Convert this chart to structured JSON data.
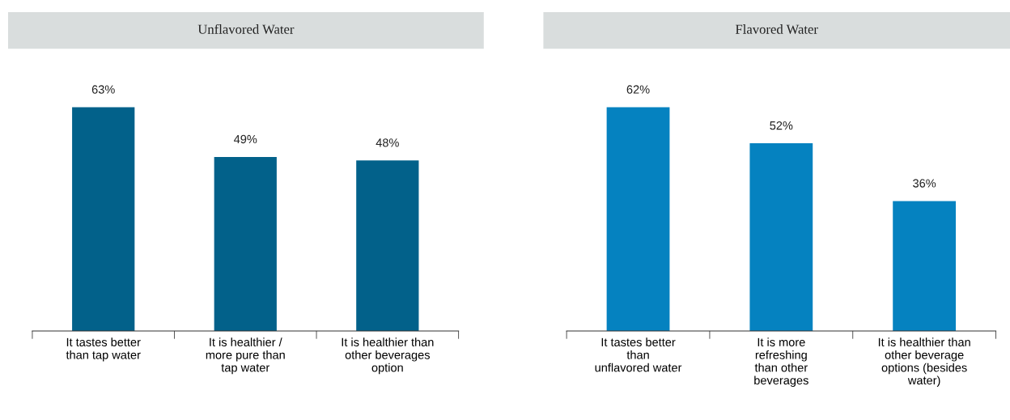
{
  "chart_data": [
    {
      "type": "bar",
      "title": "Unflavored Water",
      "categories": [
        "It tastes better\nthan tap water",
        "It is healthier /\nmore pure than\ntap water",
        "It is healthier than\nother beverages\noption"
      ],
      "values": [
        63,
        49,
        48
      ],
      "value_labels": [
        "63%",
        "49%",
        "48%"
      ],
      "color": "#02618a",
      "grid": false,
      "legend": false
    },
    {
      "type": "bar",
      "title": "Flavored Water",
      "categories": [
        "It tastes better\nthan\nunflavored water",
        "It is more\nrefreshing\nthan other\nbeverages",
        "It is healthier than\nother beverage\noptions (besides\nwater)"
      ],
      "values": [
        62,
        52,
        36
      ],
      "value_labels": [
        "62%",
        "52%",
        "36%"
      ],
      "color": "#0582c0",
      "grid": false,
      "legend": false
    }
  ]
}
